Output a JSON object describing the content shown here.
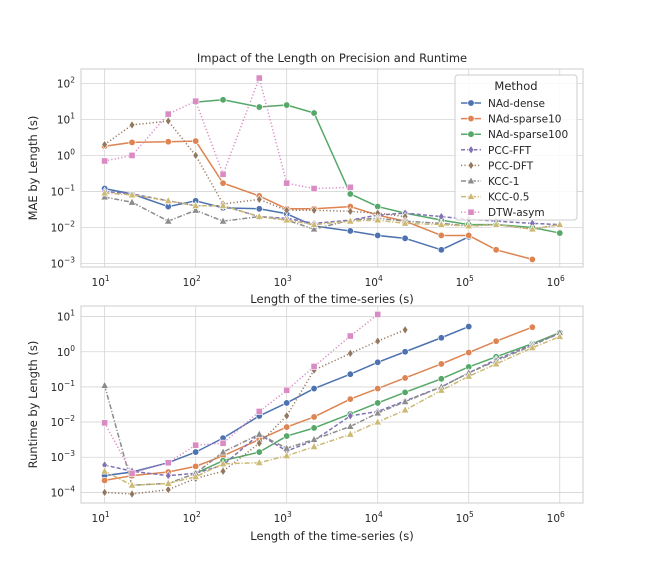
{
  "chart_data": [
    {
      "type": "line",
      "title": "Impact of the Length on Precision and Runtime",
      "xlabel": "Length of the time-series (s)",
      "ylabel": "MAE by Length (s)",
      "xscale": "log",
      "yscale": "log",
      "xlim": [
        5.5,
        1800000
      ],
      "ylim": [
        0.0008,
        250
      ],
      "grid": true,
      "legend_title": "Method",
      "legend_position": "top-right",
      "x_ticks": [
        {
          "value": 10,
          "base": "10",
          "exp": "1"
        },
        {
          "value": 100,
          "base": "10",
          "exp": "2"
        },
        {
          "value": 1000,
          "base": "10",
          "exp": "3"
        },
        {
          "value": 10000,
          "base": "10",
          "exp": "4"
        },
        {
          "value": 100000,
          "base": "10",
          "exp": "5"
        },
        {
          "value": 1000000,
          "base": "10",
          "exp": "6"
        }
      ],
      "y_ticks": [
        {
          "value": 0.001,
          "base": "10",
          "exp": "−3"
        },
        {
          "value": 0.01,
          "base": "10",
          "exp": "−2"
        },
        {
          "value": 0.1,
          "base": "10",
          "exp": "−1"
        },
        {
          "value": 1,
          "base": "10",
          "exp": "0"
        },
        {
          "value": 10,
          "base": "10",
          "exp": "1"
        },
        {
          "value": 100,
          "base": "10",
          "exp": "2"
        }
      ],
      "series": [
        {
          "name": "NAd-dense",
          "color": "#4c72b0",
          "dash": "solid",
          "marker": "circle",
          "x": [
            10,
            20,
            50,
            100,
            200,
            500,
            1000,
            2000,
            5000,
            10000,
            20000,
            50000,
            100000
          ],
          "y": [
            0.12,
            0.085,
            0.038,
            0.055,
            0.035,
            0.033,
            0.024,
            0.011,
            0.008,
            0.006,
            0.005,
            0.0024,
            0.0055
          ]
        },
        {
          "name": "NAd-sparse10",
          "color": "#dd8452",
          "dash": "solid",
          "marker": "circle",
          "x": [
            10,
            20,
            50,
            100,
            200,
            500,
            1000,
            2000,
            5000,
            10000,
            20000,
            50000,
            100000,
            200000,
            500000
          ],
          "y": [
            1.8,
            2.3,
            2.4,
            2.5,
            0.17,
            0.075,
            0.033,
            0.033,
            0.038,
            0.022,
            0.015,
            0.006,
            0.006,
            0.0024,
            0.0013
          ]
        },
        {
          "name": "NAd-sparse100",
          "color": "#55a868",
          "dash": "solid",
          "marker": "circle",
          "x": [
            100,
            200,
            500,
            1000,
            2000,
            5000,
            10000,
            20000,
            50000,
            100000,
            200000,
            500000,
            1000000
          ],
          "y": [
            30,
            35,
            22,
            25,
            15,
            0.085,
            0.038,
            0.025,
            0.016,
            0.012,
            0.012,
            0.01,
            0.007
          ]
        },
        {
          "name": "PCC-FFT",
          "color": "#8172b3",
          "dash": "dashed",
          "marker": "diamond",
          "x": [
            10,
            20,
            50,
            100,
            200,
            500,
            1000,
            2000,
            5000,
            10000,
            20000,
            50000,
            100000,
            200000,
            500000,
            1000000
          ],
          "y": [
            0.1,
            0.085,
            0.055,
            0.04,
            0.04,
            0.02,
            0.018,
            0.013,
            0.016,
            0.022,
            0.025,
            0.02,
            0.017,
            0.015,
            0.013,
            0.012
          ]
        },
        {
          "name": "PCC-DFT",
          "color": "#937860",
          "dash": "dotted",
          "marker": "diamond",
          "x": [
            10,
            20,
            50,
            100,
            200,
            500,
            1000,
            2000,
            5000,
            10000,
            20000
          ],
          "y": [
            2.0,
            7.0,
            9.0,
            1.0,
            0.045,
            0.06,
            0.03,
            0.03,
            0.028,
            0.025,
            0.02
          ]
        },
        {
          "name": "KCC-1",
          "color": "#8c8c8c",
          "dash": "dashdot",
          "marker": "triangle",
          "x": [
            10,
            20,
            50,
            100,
            200,
            500,
            1000,
            2000,
            5000,
            10000,
            20000,
            50000,
            100000,
            200000,
            500000,
            1000000
          ],
          "y": [
            0.07,
            0.05,
            0.015,
            0.03,
            0.015,
            0.02,
            0.016,
            0.009,
            0.016,
            0.018,
            0.015,
            0.013,
            0.011,
            0.012,
            0.009,
            0.012
          ]
        },
        {
          "name": "KCC-0.5",
          "color": "#ccb974",
          "dash": "dashdot",
          "marker": "triangle",
          "x": [
            10,
            20,
            50,
            100,
            200,
            500,
            1000,
            2000,
            5000,
            10000,
            20000,
            50000,
            100000,
            200000,
            500000,
            1000000
          ],
          "y": [
            0.09,
            0.08,
            0.055,
            0.04,
            0.04,
            0.02,
            0.016,
            0.012,
            0.015,
            0.016,
            0.013,
            0.012,
            0.011,
            0.012,
            0.009,
            0.012
          ]
        },
        {
          "name": "DTW-asym",
          "color": "#da8bc3",
          "dash": "dotted",
          "marker": "square",
          "x": [
            10,
            20,
            50,
            100,
            200,
            500,
            1000,
            2000,
            5000
          ],
          "y": [
            0.7,
            1.0,
            14,
            32,
            0.3,
            140,
            0.17,
            0.12,
            0.13
          ]
        }
      ]
    },
    {
      "type": "line",
      "title": "",
      "xlabel": "Length of the time-series (s)",
      "ylabel": "Runtime by Length (s)",
      "xscale": "log",
      "yscale": "log",
      "xlim": [
        5.5,
        1800000
      ],
      "ylim": [
        5e-05,
        20
      ],
      "grid": true,
      "x_ticks": [
        {
          "value": 10,
          "base": "10",
          "exp": "1"
        },
        {
          "value": 100,
          "base": "10",
          "exp": "2"
        },
        {
          "value": 1000,
          "base": "10",
          "exp": "3"
        },
        {
          "value": 10000,
          "base": "10",
          "exp": "4"
        },
        {
          "value": 100000,
          "base": "10",
          "exp": "5"
        },
        {
          "value": 1000000,
          "base": "10",
          "exp": "6"
        }
      ],
      "y_ticks": [
        {
          "value": 0.0001,
          "base": "10",
          "exp": "−4"
        },
        {
          "value": 0.001,
          "base": "10",
          "exp": "−3"
        },
        {
          "value": 0.01,
          "base": "10",
          "exp": "−2"
        },
        {
          "value": 0.1,
          "base": "10",
          "exp": "−1"
        },
        {
          "value": 1,
          "base": "10",
          "exp": "0"
        },
        {
          "value": 10,
          "base": "10",
          "exp": "1"
        }
      ],
      "series": [
        {
          "name": "NAd-dense",
          "color": "#4c72b0",
          "dash": "solid",
          "marker": "circle",
          "x": [
            10,
            20,
            50,
            100,
            200,
            500,
            1000,
            2000,
            5000,
            10000,
            20000,
            50000,
            100000
          ],
          "y": [
            0.0003,
            0.00038,
            0.0007,
            0.0014,
            0.0035,
            0.015,
            0.035,
            0.09,
            0.23,
            0.5,
            1.0,
            2.5,
            5.2
          ]
        },
        {
          "name": "NAd-sparse10",
          "color": "#dd8452",
          "dash": "solid",
          "marker": "circle",
          "x": [
            10,
            20,
            50,
            100,
            200,
            500,
            1000,
            2000,
            5000,
            10000,
            20000,
            50000,
            100000,
            200000,
            500000
          ],
          "y": [
            0.00022,
            0.0003,
            0.00038,
            0.00055,
            0.0011,
            0.0032,
            0.0072,
            0.014,
            0.045,
            0.09,
            0.18,
            0.45,
            0.95,
            2.0,
            5.0
          ]
        },
        {
          "name": "NAd-sparse100",
          "color": "#55a868",
          "dash": "solid",
          "marker": "circle",
          "x": [
            100,
            200,
            500,
            1000,
            2000,
            5000,
            10000,
            20000,
            50000,
            100000,
            200000,
            500000,
            1000000
          ],
          "y": [
            0.00035,
            0.0008,
            0.0014,
            0.004,
            0.0068,
            0.017,
            0.035,
            0.07,
            0.17,
            0.37,
            0.72,
            1.7,
            3.5
          ]
        },
        {
          "name": "PCC-FFT",
          "color": "#8172b3",
          "dash": "dashed",
          "marker": "diamond",
          "x": [
            10,
            20,
            50,
            100,
            200,
            500,
            1000,
            2000,
            5000,
            10000,
            20000,
            50000,
            100000,
            200000,
            500000,
            1000000
          ],
          "y": [
            0.0006,
            0.0004,
            0.0003,
            0.00035,
            0.0006,
            0.0045,
            0.0015,
            0.003,
            0.015,
            0.02,
            0.04,
            0.1,
            0.25,
            0.6,
            1.6,
            3.3
          ]
        },
        {
          "name": "PCC-DFT",
          "color": "#937860",
          "dash": "dotted",
          "marker": "diamond",
          "x": [
            10,
            20,
            50,
            100,
            200,
            500,
            1000,
            2000,
            5000,
            10000,
            20000
          ],
          "y": [
            0.0001,
            9e-05,
            0.00012,
            0.00025,
            0.0004,
            0.0025,
            0.015,
            0.3,
            0.9,
            2.0,
            4.2
          ]
        },
        {
          "name": "KCC-1",
          "color": "#8c8c8c",
          "dash": "dashdot",
          "marker": "triangle",
          "x": [
            10,
            20,
            50,
            100,
            200,
            500,
            1000,
            2000,
            5000,
            10000,
            20000,
            50000,
            100000,
            200000,
            500000,
            1000000
          ],
          "y": [
            0.11,
            0.00016,
            0.00018,
            0.00035,
            0.0014,
            0.0045,
            0.0018,
            0.0032,
            0.0075,
            0.018,
            0.038,
            0.1,
            0.25,
            0.55,
            1.5,
            3.5
          ]
        },
        {
          "name": "KCC-0.5",
          "color": "#ccb974",
          "dash": "dashdot",
          "marker": "triangle",
          "x": [
            10,
            20,
            50,
            100,
            200,
            500,
            1000,
            2000,
            5000,
            10000,
            20000,
            50000,
            100000,
            200000,
            500000,
            1000000
          ],
          "y": [
            0.0004,
            0.00016,
            0.00018,
            0.00028,
            0.00065,
            0.0007,
            0.0011,
            0.002,
            0.0045,
            0.01,
            0.022,
            0.08,
            0.2,
            0.45,
            1.3,
            2.7
          ]
        },
        {
          "name": "DTW-asym",
          "color": "#da8bc3",
          "dash": "dotted",
          "marker": "square",
          "x": [
            10,
            20,
            50,
            100,
            200,
            500,
            1000,
            2000,
            5000,
            10000
          ],
          "y": [
            0.0095,
            0.00035,
            0.0007,
            0.0022,
            0.0025,
            0.02,
            0.08,
            0.38,
            2.8,
            11.5
          ]
        }
      ]
    }
  ]
}
